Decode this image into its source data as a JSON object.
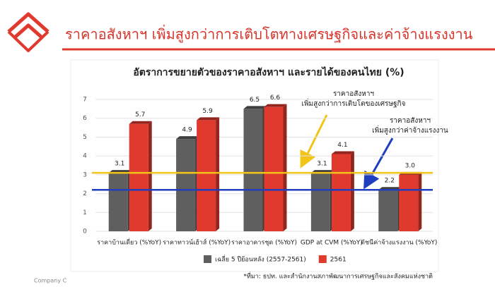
{
  "header": {
    "title": "ราคาอสังหาฯ เพิ่มสูงกว่าการเติบโตทางเศรษฐกิจและค่าจ้างแรงงาน"
  },
  "footer": {
    "company": "Company C"
  },
  "chart_data": {
    "type": "bar",
    "title": "อัตราการขยายตัวของราคาอสังหาฯ และรายได้ของคนไทย (%)",
    "categories": [
      "ราคาบ้านเดี่ยว (%YoY)",
      "ราคาทาวน์เฮ้าส์ (%YoY)",
      "ราคาอาคารชุด (%YoY)",
      "GDP at CVM (%YoY)",
      "ดัชนีค่าจ้างแรงงาน (%YoY)"
    ],
    "series": [
      {
        "name": "เฉลี่ย 5 ปีย้อนหลัง (2557-2561)",
        "color": "#5f5f5f",
        "values": [
          3.1,
          4.9,
          6.5,
          3.1,
          2.2
        ]
      },
      {
        "name": "2561",
        "color": "#e03a2f",
        "values": [
          5.7,
          5.9,
          6.6,
          4.1,
          3.0
        ],
        "value_labels": [
          "5.7",
          "5.9",
          "6.6",
          "4.1",
          "3.0"
        ]
      }
    ],
    "ylim": [
      0,
      7
    ],
    "yticks": [
      0,
      1,
      2,
      3,
      4,
      5,
      6,
      7
    ],
    "grid": true,
    "reference_lines": [
      {
        "value": 3.1,
        "color": "#f2c418"
      },
      {
        "value": 2.2,
        "color": "#1f3fbf"
      }
    ],
    "annotations": [
      {
        "lines": [
          "ราคาอสังหาฯ",
          "เพิ่มสูงกว่าการเติบโตของเศรษฐกิจ"
        ]
      },
      {
        "lines": [
          "ราคาอสังหาฯ",
          "เพิ่มสูงกว่าค่าจ้างแรงงาน"
        ]
      }
    ],
    "legend": "bottom",
    "source": "*ที่มา: ธปท. และสำนักงานสภาพัฒนาการเศรษฐกิจและสังคมแห่งชาติ"
  }
}
